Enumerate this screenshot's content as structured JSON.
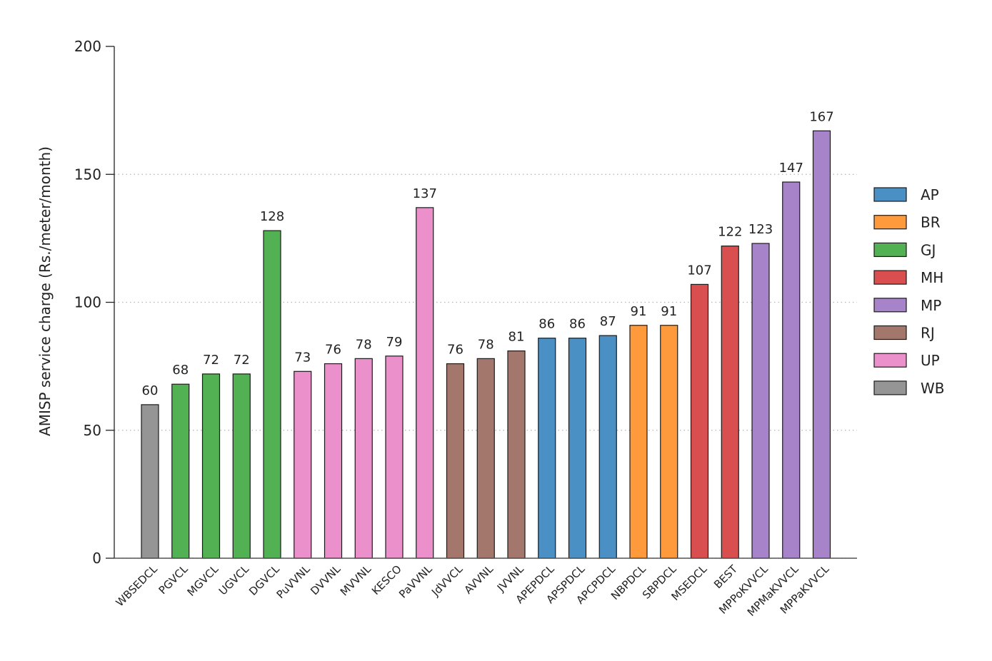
{
  "chart_data": {
    "type": "bar",
    "title": "",
    "xlabel": "",
    "ylabel": "AMISP service charge (Rs./meter/month)",
    "ylim": [
      0,
      200
    ],
    "yticks": [
      0,
      50,
      100,
      150,
      200
    ],
    "grid": "horizontal dotted",
    "legend_placement": "right",
    "categories": [
      "WBSEDCL",
      "PGVCL",
      "MGVCL",
      "UGVCL",
      "DGVCL",
      "PuVVNL",
      "DVVNL",
      "MVVNL",
      "KESCO",
      "PaVVNL",
      "JdVVCL",
      "AVVNL",
      "JVVNL",
      "APEPDCL",
      "APSPDCL",
      "APCPDCL",
      "NBPDCL",
      "SBPDCL",
      "MSEDCL",
      "BEST",
      "MPPoKVVCL",
      "MPMaKVVCL",
      "MPPaKVVCL"
    ],
    "values": [
      60,
      68,
      72,
      72,
      128,
      73,
      76,
      78,
      79,
      137,
      76,
      78,
      81,
      86,
      86,
      87,
      91,
      91,
      107,
      122,
      123,
      147,
      167
    ],
    "groups": [
      "WB",
      "GJ",
      "GJ",
      "GJ",
      "GJ",
      "UP",
      "UP",
      "UP",
      "UP",
      "UP",
      "RJ",
      "RJ",
      "RJ",
      "AP",
      "AP",
      "AP",
      "BR",
      "BR",
      "MH",
      "MH",
      "MP",
      "MP",
      "MP"
    ],
    "legend": [
      {
        "name": "AP",
        "color": "#4a90c4"
      },
      {
        "name": "BR",
        "color": "#ff9a3c"
      },
      {
        "name": "GJ",
        "color": "#52b152"
      },
      {
        "name": "MH",
        "color": "#d94f4f"
      },
      {
        "name": "MP",
        "color": "#a783c9"
      },
      {
        "name": "RJ",
        "color": "#a4776c"
      },
      {
        "name": "UP",
        "color": "#ec90cc"
      },
      {
        "name": "WB",
        "color": "#959595"
      }
    ]
  }
}
